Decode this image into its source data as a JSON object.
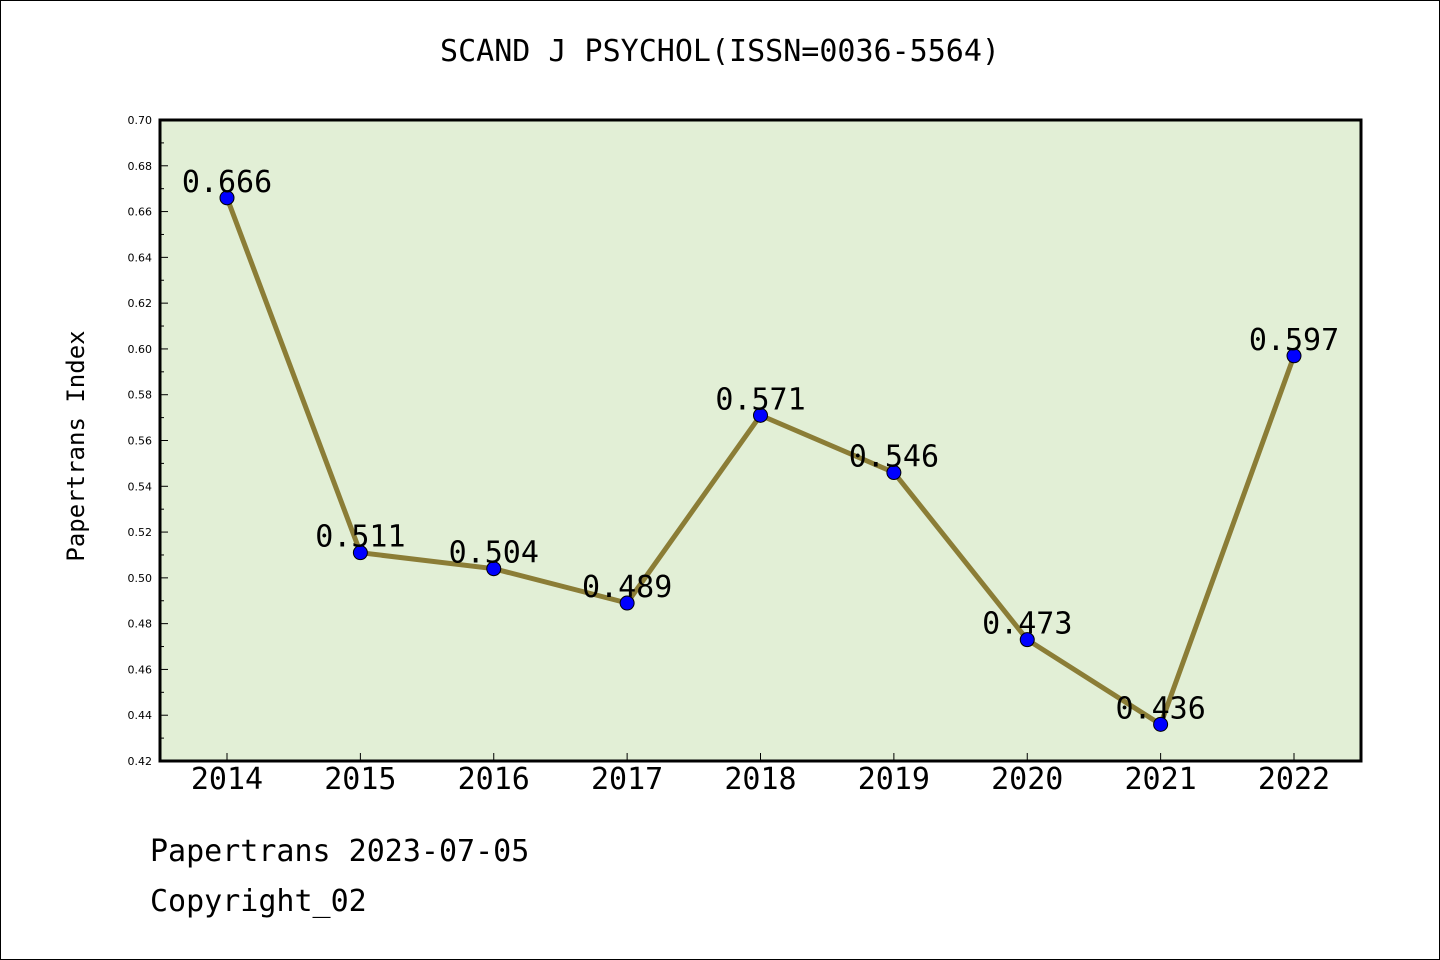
{
  "chart_data": {
    "type": "line",
    "title": "SCAND J PSYCHOL(ISSN=0036-5564)",
    "xlabel": "",
    "ylabel": "Papertrans Index",
    "categories": [
      "2014",
      "2015",
      "2016",
      "2017",
      "2018",
      "2019",
      "2020",
      "2021",
      "2022"
    ],
    "values": [
      0.666,
      0.511,
      0.504,
      0.489,
      0.571,
      0.546,
      0.473,
      0.436,
      0.597
    ],
    "data_labels": [
      "0.666",
      "0.511",
      "0.504",
      "0.489",
      "0.571",
      "0.546",
      "0.473",
      "0.436",
      "0.597"
    ],
    "ylim": [
      0.42,
      0.7
    ],
    "yticks": [
      "0.42",
      "0.44",
      "0.46",
      "0.48",
      "0.50",
      "0.52",
      "0.54",
      "0.56",
      "0.58",
      "0.60",
      "0.62",
      "0.64",
      "0.66",
      "0.68",
      "0.70"
    ],
    "grid": false,
    "colors": {
      "plot_background": "#e2efd6",
      "line": "#8b7d36",
      "marker": "#0000ff"
    }
  },
  "footer": {
    "line1": "Papertrans 2023-07-05",
    "line2": "Copyright_02"
  }
}
